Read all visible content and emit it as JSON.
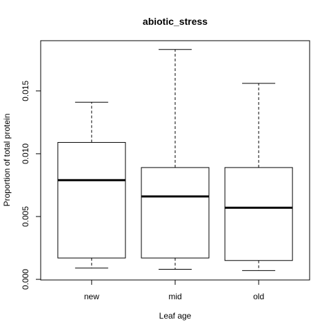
{
  "chart_data": {
    "type": "boxplot",
    "title": "abiotic_stress",
    "xlabel": "Leaf age",
    "ylabel": "Proportion of total protein",
    "categories": [
      "new",
      "mid",
      "old"
    ],
    "boxes": [
      {
        "name": "new",
        "whisker_low": 0.0009,
        "q1": 0.0017,
        "median": 0.0079,
        "q3": 0.0109,
        "whisker_high": 0.0141
      },
      {
        "name": "mid",
        "whisker_low": 0.0008,
        "q1": 0.0017,
        "median": 0.0066,
        "q3": 0.0089,
        "whisker_high": 0.0183
      },
      {
        "name": "old",
        "whisker_low": 0.0007,
        "q1": 0.0015,
        "median": 0.0057,
        "q3": 0.0089,
        "whisker_high": 0.0156
      }
    ],
    "ylim": [
      -5e-05,
      0.019
    ],
    "yticks": [
      0.0,
      0.005,
      0.01,
      0.015
    ],
    "ytick_labels": [
      "0.000",
      "0.005",
      "0.010",
      "0.015"
    ],
    "grid": false,
    "legend": "none"
  }
}
